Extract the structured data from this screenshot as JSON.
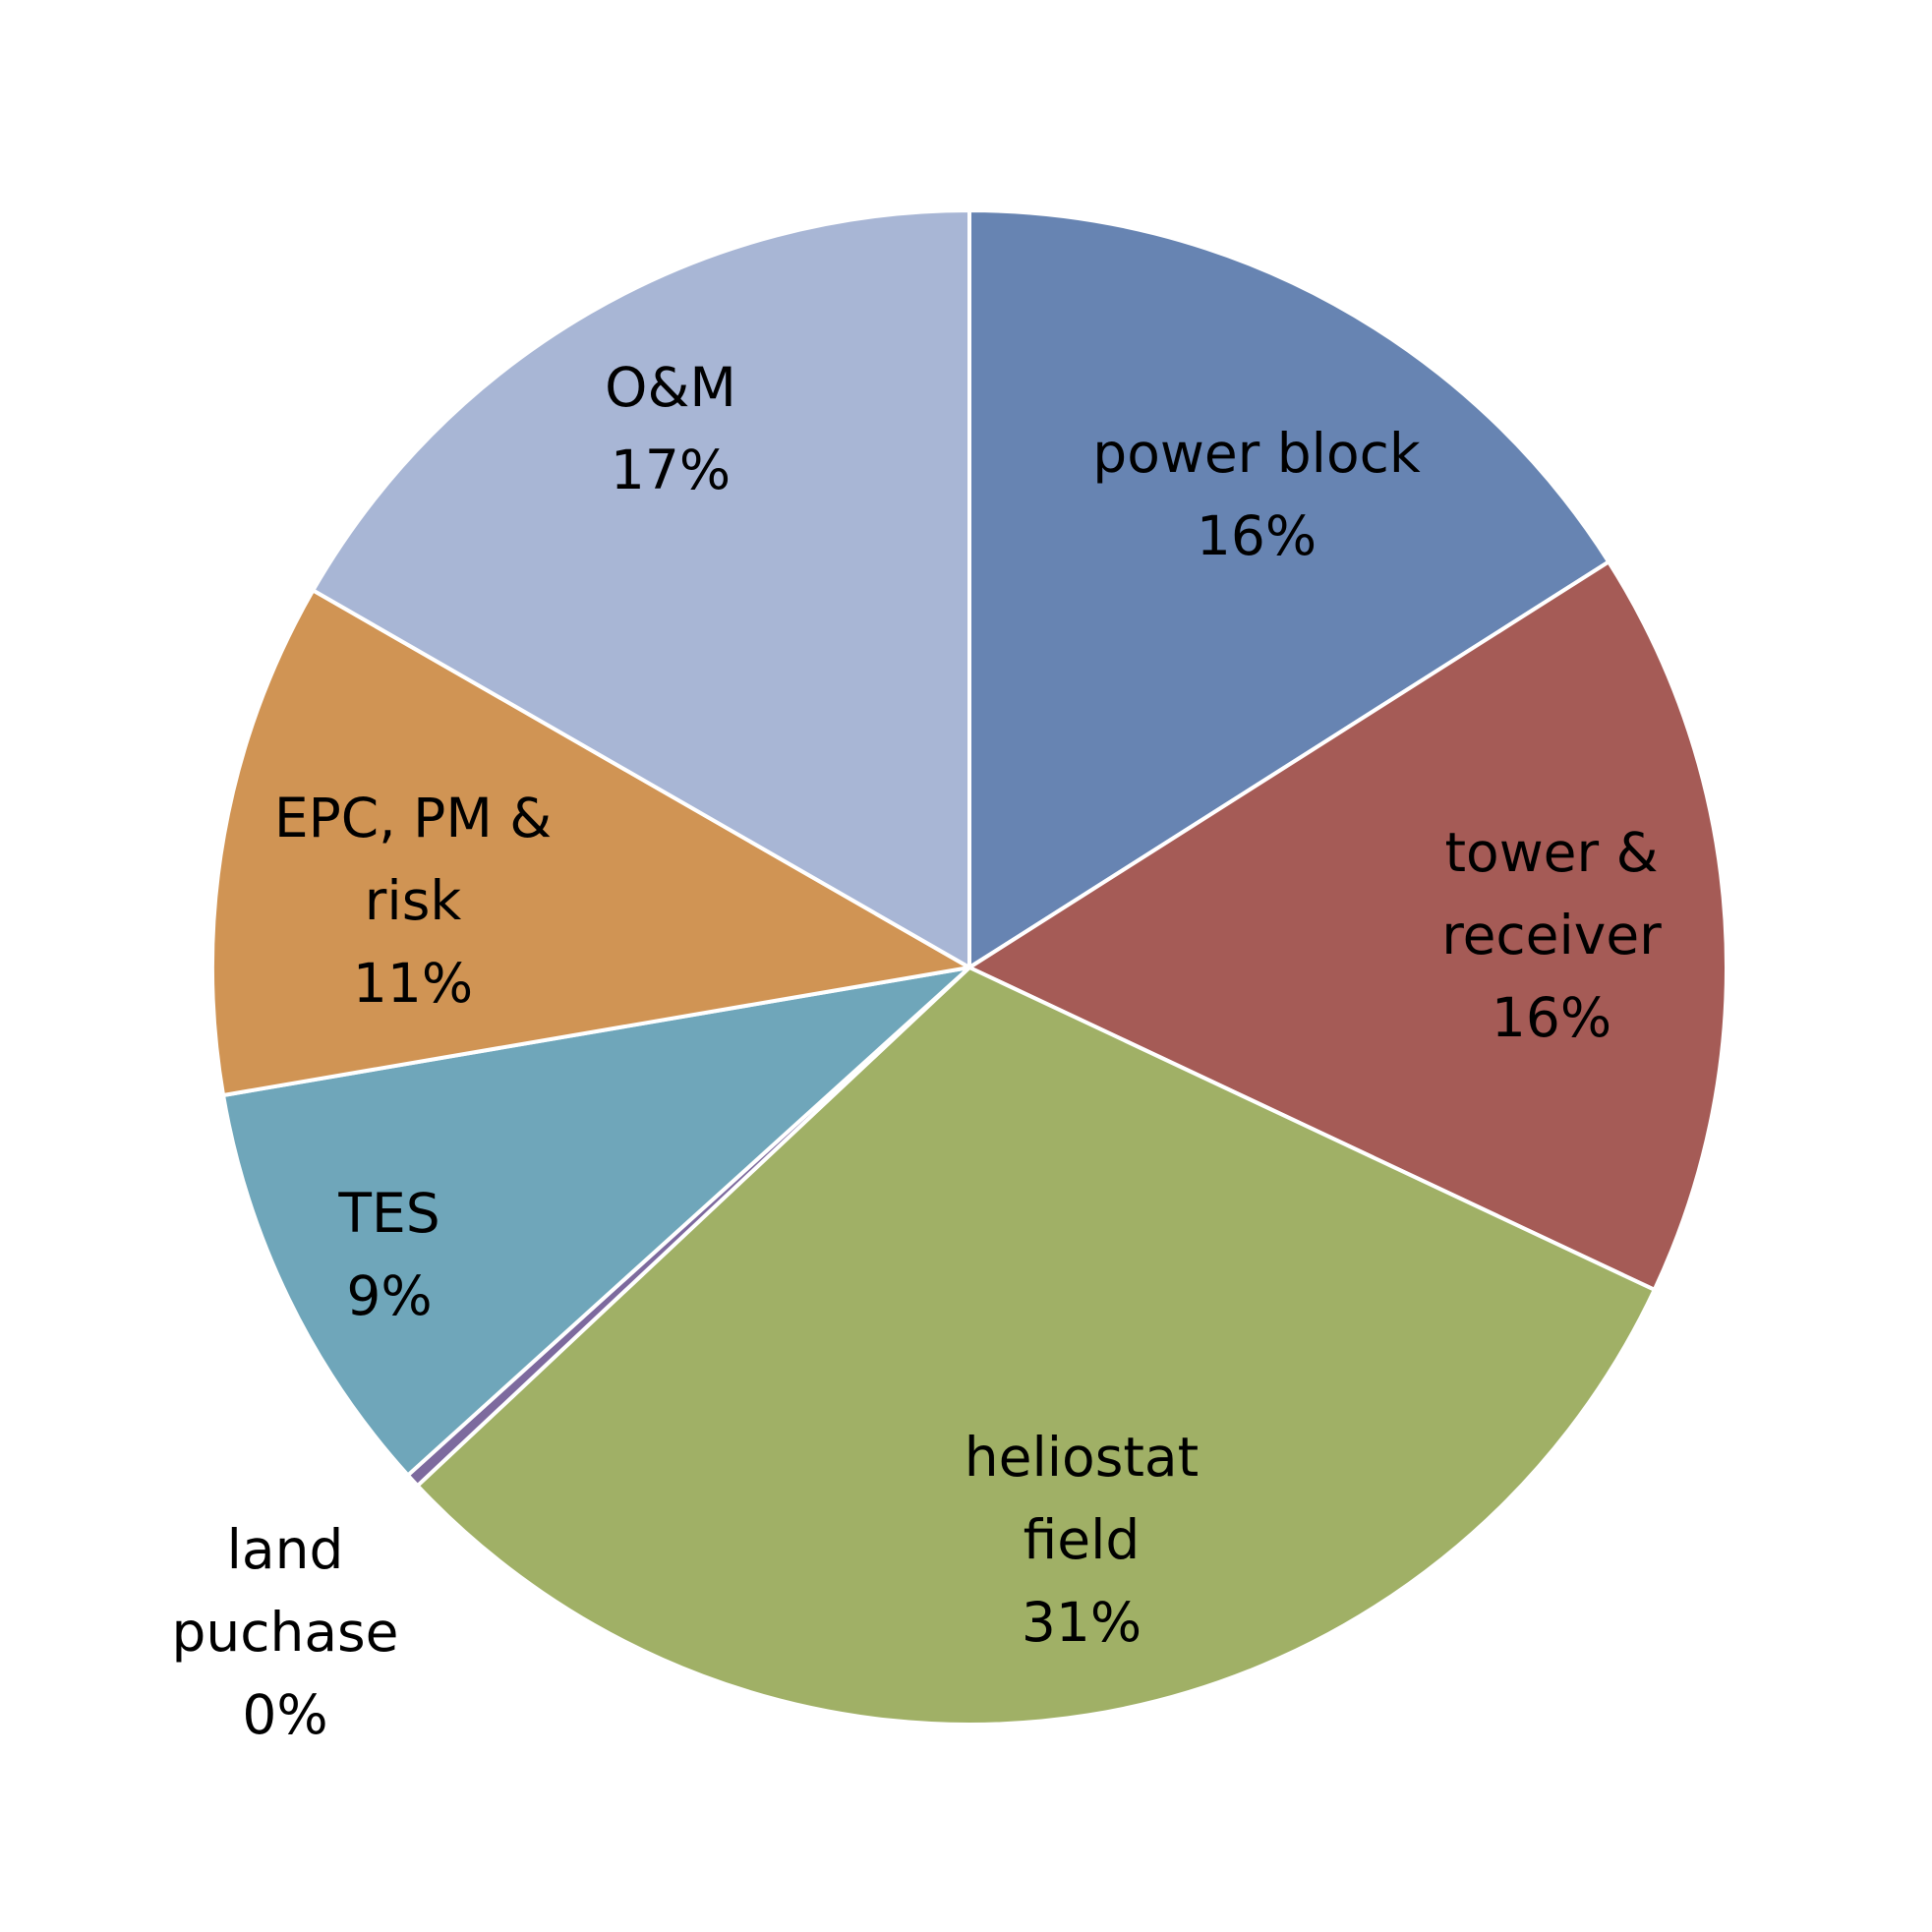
{
  "chart_data": {
    "type": "pie",
    "title": "",
    "slices": [
      {
        "key": "power-block",
        "label_lines": [
          "power block",
          "16%"
        ],
        "value": 16.0,
        "color": "#6784B2"
      },
      {
        "key": "tower-receiver",
        "label_lines": [
          "tower &",
          "receiver",
          "16%"
        ],
        "value": 16.0,
        "color": "#A55B56"
      },
      {
        "key": "heliostat-field",
        "label_lines": [
          "heliostat",
          "field",
          "31%"
        ],
        "value": 31.0,
        "color": "#A0B066"
      },
      {
        "key": "land-puchase",
        "label_lines": [
          "land",
          "puchase",
          "0%"
        ],
        "value": 0.3,
        "color": "#7D6A9E"
      },
      {
        "key": "tes",
        "label_lines": [
          "TES",
          "9%"
        ],
        "value": 9.0,
        "color": "#6FA6BA"
      },
      {
        "key": "epc-pm-risk",
        "label_lines": [
          "EPC, PM &",
          "risk",
          "11%"
        ],
        "value": 11.0,
        "color": "#D09454"
      },
      {
        "key": "om",
        "label_lines": [
          "O&M",
          "17%"
        ],
        "value": 16.7,
        "color": "#A8B6D5"
      }
    ],
    "start_angle": "12 o'clock",
    "direction": "clockwise",
    "legend": "none"
  }
}
